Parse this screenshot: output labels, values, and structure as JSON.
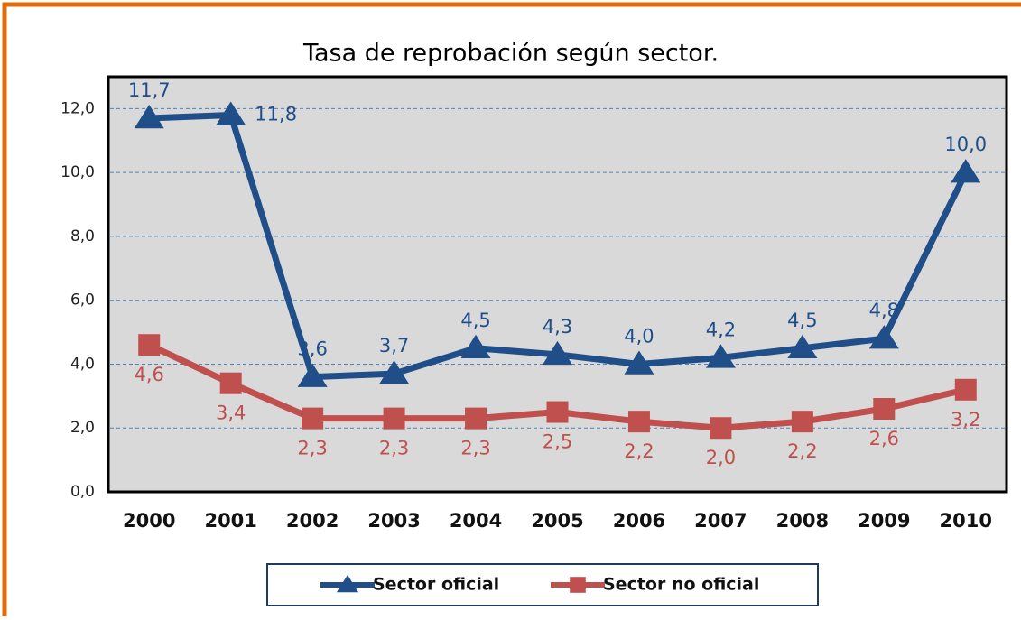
{
  "chart_data": {
    "type": "line",
    "title": "Tasa de reprobación según sector.",
    "categories": [
      "2000",
      "2001",
      "2002",
      "2003",
      "2004",
      "2005",
      "2006",
      "2007",
      "2008",
      "2009",
      "2010"
    ],
    "series": [
      {
        "name": "Sector oficial",
        "color": "#1f4e89",
        "marker": "triangle",
        "values": [
          11.7,
          11.8,
          3.6,
          3.7,
          4.5,
          4.3,
          4.0,
          4.2,
          4.5,
          4.8,
          10.0
        ],
        "value_labels": [
          "11,7",
          "11,8",
          "3,6",
          "3,7",
          "4,5",
          "4,3",
          "4,0",
          "4,2",
          "4,5",
          "4,8",
          "10,0"
        ]
      },
      {
        "name": "Sector no oficial",
        "color": "#c0504d",
        "marker": "square",
        "values": [
          4.6,
          3.4,
          2.3,
          2.3,
          2.3,
          2.5,
          2.2,
          2.0,
          2.2,
          2.6,
          3.2
        ],
        "value_labels": [
          "4,6",
          "3,4",
          "2,3",
          "2,3",
          "2,3",
          "2,5",
          "2,2",
          "2,0",
          "2,2",
          "2,6",
          "3,2"
        ]
      }
    ],
    "ylim": [
      0,
      13
    ],
    "yticks": [
      {
        "value": 0,
        "label": "0,0"
      },
      {
        "value": 2,
        "label": "2,0"
      },
      {
        "value": 4,
        "label": "4,0"
      },
      {
        "value": 6,
        "label": "6,0"
      },
      {
        "value": 8,
        "label": "8,0"
      },
      {
        "value": 10,
        "label": "10,0"
      },
      {
        "value": 12,
        "label": "12,0"
      }
    ],
    "grid": true,
    "legend": "bottom"
  }
}
